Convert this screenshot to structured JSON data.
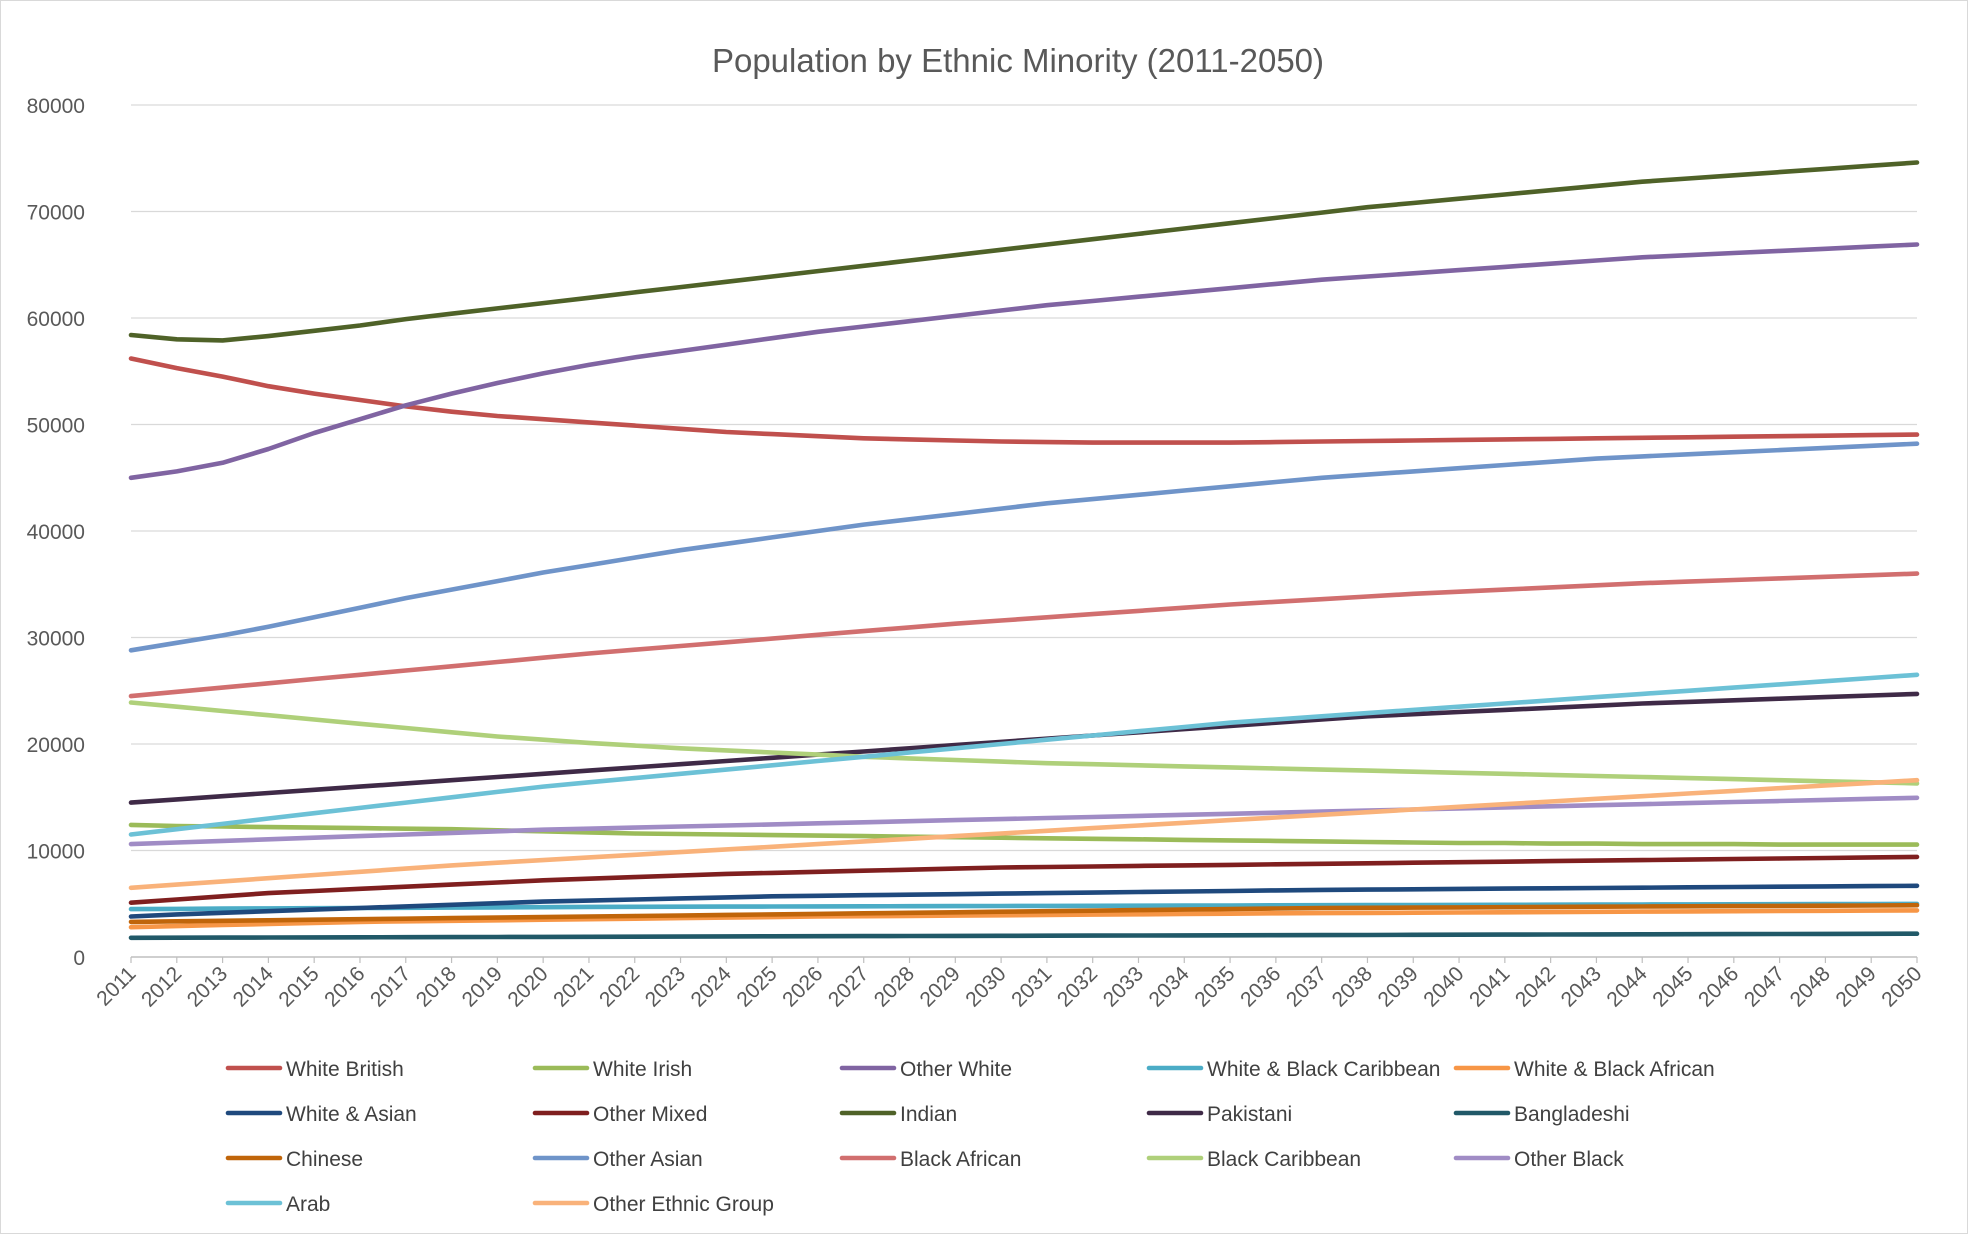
{
  "chart_data": {
    "type": "line",
    "title": "Population by Ethnic Minority (2011-2050)",
    "xlabel": "",
    "ylabel": "",
    "ylim": [
      0,
      80000
    ],
    "yticks": [
      "0",
      "10000",
      "20000",
      "30000",
      "40000",
      "50000",
      "60000",
      "70000",
      "80000"
    ],
    "grid": true,
    "legend_position": "bottom",
    "x": [
      "2011",
      "2012",
      "2013",
      "2014",
      "2015",
      "2016",
      "2017",
      "2018",
      "2019",
      "2020",
      "2021",
      "2022",
      "2023",
      "2024",
      "2025",
      "2026",
      "2027",
      "2028",
      "2029",
      "2030",
      "2031",
      "2032",
      "2033",
      "2034",
      "2035",
      "2036",
      "2037",
      "2038",
      "2039",
      "2040",
      "2041",
      "2042",
      "2043",
      "2044",
      "2045",
      "2046",
      "2047",
      "2048",
      "2049",
      "2050"
    ],
    "series": [
      {
        "name": "White British",
        "color": "#c0504d",
        "values": [
          56200,
          55300,
          54500,
          53600,
          52900,
          52300,
          51700,
          51200,
          50800,
          50500,
          50200,
          49900,
          49600,
          49300,
          49100,
          48900,
          48700,
          48600,
          48500,
          48400,
          48350,
          48300,
          48300,
          48300,
          48300,
          48350,
          48400,
          48450,
          48500,
          48550,
          48600,
          48650,
          48700,
          48750,
          48800,
          48850,
          48900,
          48950,
          49000,
          49050
        ]
      },
      {
        "name": "White Irish",
        "color": "#9bbb59",
        "values": [
          12400,
          12300,
          12250,
          12200,
          12150,
          12100,
          12050,
          12000,
          11900,
          11800,
          11700,
          11600,
          11550,
          11500,
          11450,
          11400,
          11350,
          11300,
          11250,
          11200,
          11150,
          11100,
          11050,
          11000,
          10950,
          10900,
          10850,
          10800,
          10750,
          10700,
          10700,
          10650,
          10650,
          10600,
          10600,
          10600,
          10550,
          10550,
          10550,
          10550
        ]
      },
      {
        "name": "Other White",
        "color": "#8064a2",
        "values": [
          45000,
          45600,
          46400,
          47700,
          49200,
          50500,
          51800,
          52900,
          53900,
          54800,
          55600,
          56300,
          56900,
          57500,
          58100,
          58700,
          59200,
          59700,
          60200,
          60700,
          61200,
          61600,
          62000,
          62400,
          62800,
          63200,
          63600,
          63900,
          64200,
          64500,
          64800,
          65100,
          65400,
          65700,
          65900,
          66100,
          66300,
          66500,
          66700,
          66900
        ]
      },
      {
        "name": "White & Black Caribbean",
        "color": "#4bacc6",
        "values": [
          4500,
          4520,
          4540,
          4560,
          4580,
          4600,
          4620,
          4640,
          4660,
          4680,
          4700,
          4710,
          4720,
          4730,
          4740,
          4750,
          4760,
          4770,
          4780,
          4790,
          4800,
          4810,
          4820,
          4830,
          4840,
          4850,
          4860,
          4870,
          4880,
          4890,
          4900,
          4910,
          4920,
          4930,
          4940,
          4950,
          4960,
          4970,
          4980,
          4990
        ]
      },
      {
        "name": "White & Black African",
        "color": "#f79646",
        "values": [
          2800,
          2900,
          3000,
          3100,
          3200,
          3300,
          3350,
          3400,
          3450,
          3500,
          3550,
          3600,
          3650,
          3700,
          3750,
          3800,
          3830,
          3860,
          3890,
          3920,
          3950,
          3980,
          4010,
          4040,
          4070,
          4100,
          4120,
          4140,
          4160,
          4180,
          4200,
          4220,
          4240,
          4260,
          4280,
          4300,
          4320,
          4340,
          4360,
          4380
        ]
      },
      {
        "name": "White & Asian",
        "color": "#1f497d",
        "values": [
          3800,
          4000,
          4150,
          4300,
          4450,
          4600,
          4750,
          4900,
          5050,
          5200,
          5300,
          5400,
          5500,
          5600,
          5700,
          5750,
          5800,
          5850,
          5900,
          5950,
          6000,
          6050,
          6100,
          6150,
          6200,
          6250,
          6300,
          6330,
          6360,
          6390,
          6420,
          6450,
          6480,
          6510,
          6540,
          6570,
          6600,
          6630,
          6660,
          6690
        ]
      },
      {
        "name": "Other Mixed",
        "color": "#7f1f1f",
        "values": [
          5100,
          5400,
          5700,
          6000,
          6200,
          6400,
          6600,
          6800,
          7000,
          7200,
          7350,
          7500,
          7650,
          7800,
          7900,
          8000,
          8100,
          8200,
          8300,
          8400,
          8450,
          8500,
          8550,
          8600,
          8650,
          8700,
          8750,
          8800,
          8850,
          8900,
          8950,
          9000,
          9050,
          9100,
          9150,
          9200,
          9250,
          9300,
          9350,
          9400
        ]
      },
      {
        "name": "Indian",
        "color": "#4f6228",
        "values": [
          58400,
          58000,
          57900,
          58300,
          58800,
          59300,
          59900,
          60400,
          60900,
          61400,
          61900,
          62400,
          62900,
          63400,
          63900,
          64400,
          64900,
          65400,
          65900,
          66400,
          66900,
          67400,
          67900,
          68400,
          68900,
          69400,
          69900,
          70400,
          70800,
          71200,
          71600,
          72000,
          72400,
          72800,
          73100,
          73400,
          73700,
          74000,
          74300,
          74600
        ]
      },
      {
        "name": "Pakistani",
        "color": "#3f2a47",
        "values": [
          14500,
          14800,
          15100,
          15400,
          15700,
          16000,
          16300,
          16600,
          16900,
          17200,
          17500,
          17800,
          18100,
          18400,
          18700,
          19000,
          19300,
          19600,
          19900,
          20200,
          20500,
          20800,
          21100,
          21400,
          21700,
          22000,
          22300,
          22600,
          22800,
          23000,
          23200,
          23400,
          23600,
          23800,
          23950,
          24100,
          24250,
          24400,
          24550,
          24700
        ]
      },
      {
        "name": "Bangladeshi",
        "color": "#215968",
        "values": [
          1800,
          1810,
          1820,
          1830,
          1840,
          1850,
          1860,
          1870,
          1880,
          1890,
          1900,
          1910,
          1920,
          1930,
          1940,
          1950,
          1960,
          1970,
          1980,
          1990,
          2000,
          2010,
          2020,
          2030,
          2040,
          2050,
          2060,
          2070,
          2080,
          2090,
          2100,
          2110,
          2120,
          2130,
          2140,
          2150,
          2160,
          2170,
          2180,
          2190
        ]
      },
      {
        "name": "Chinese",
        "color": "#c0650a",
        "values": [
          3300,
          3350,
          3400,
          3450,
          3500,
          3550,
          3600,
          3650,
          3700,
          3750,
          3800,
          3850,
          3900,
          3950,
          4000,
          4050,
          4100,
          4150,
          4200,
          4250,
          4300,
          4350,
          4400,
          4450,
          4500,
          4550,
          4600,
          4620,
          4640,
          4660,
          4680,
          4700,
          4720,
          4740,
          4760,
          4780,
          4800,
          4820,
          4840,
          4860
        ]
      },
      {
        "name": "Other Asian",
        "color": "#6f94c9",
        "values": [
          28800,
          29500,
          30200,
          31000,
          31900,
          32800,
          33700,
          34500,
          35300,
          36100,
          36800,
          37500,
          38200,
          38800,
          39400,
          40000,
          40600,
          41100,
          41600,
          42100,
          42600,
          43000,
          43400,
          43800,
          44200,
          44600,
          45000,
          45300,
          45600,
          45900,
          46200,
          46500,
          46800,
          47000,
          47200,
          47400,
          47600,
          47800,
          48000,
          48200
        ]
      },
      {
        "name": "Black African",
        "color": "#d16f6f",
        "values": [
          24500,
          24900,
          25300,
          25700,
          26100,
          26500,
          26900,
          27300,
          27700,
          28100,
          28500,
          28850,
          29200,
          29550,
          29900,
          30250,
          30600,
          30950,
          31300,
          31600,
          31900,
          32200,
          32500,
          32800,
          33100,
          33350,
          33600,
          33850,
          34100,
          34300,
          34500,
          34700,
          34900,
          35100,
          35250,
          35400,
          35550,
          35700,
          35850,
          36000
        ]
      },
      {
        "name": "Black Caribbean",
        "color": "#afd07a",
        "values": [
          23900,
          23500,
          23100,
          22700,
          22300,
          21900,
          21500,
          21100,
          20700,
          20400,
          20100,
          19850,
          19600,
          19400,
          19200,
          19000,
          18800,
          18650,
          18500,
          18350,
          18200,
          18100,
          18000,
          17900,
          17800,
          17700,
          17600,
          17500,
          17400,
          17300,
          17200,
          17100,
          17000,
          16900,
          16800,
          16700,
          16600,
          16500,
          16400,
          16300
        ]
      },
      {
        "name": "Other Black",
        "color": "#a08cc5",
        "values": [
          10600,
          10750,
          10900,
          11050,
          11200,
          11350,
          11500,
          11650,
          11800,
          11950,
          12050,
          12150,
          12250,
          12350,
          12450,
          12550,
          12650,
          12750,
          12850,
          12950,
          13050,
          13150,
          13250,
          13350,
          13450,
          13550,
          13650,
          13750,
          13850,
          13950,
          14050,
          14150,
          14250,
          14350,
          14450,
          14550,
          14650,
          14750,
          14850,
          14950
        ]
      },
      {
        "name": "Arab",
        "color": "#6cc1d6",
        "values": [
          11500,
          12000,
          12500,
          13000,
          13500,
          14000,
          14500,
          15000,
          15500,
          16000,
          16400,
          16800,
          17200,
          17600,
          18000,
          18400,
          18800,
          19200,
          19600,
          20000,
          20400,
          20800,
          21200,
          21600,
          22000,
          22300,
          22600,
          22900,
          23200,
          23500,
          23800,
          24100,
          24400,
          24700,
          25000,
          25300,
          25600,
          25900,
          26200,
          26500
        ]
      },
      {
        "name": "Other Ethnic Group",
        "color": "#f9b27a",
        "values": [
          6500,
          6800,
          7100,
          7400,
          7700,
          8000,
          8300,
          8600,
          8850,
          9100,
          9350,
          9600,
          9850,
          10100,
          10350,
          10600,
          10850,
          11100,
          11350,
          11600,
          11850,
          12100,
          12350,
          12600,
          12850,
          13100,
          13350,
          13600,
          13850,
          14100,
          14350,
          14600,
          14850,
          15100,
          15350,
          15600,
          15850,
          16100,
          16350,
          16600
        ]
      }
    ]
  }
}
